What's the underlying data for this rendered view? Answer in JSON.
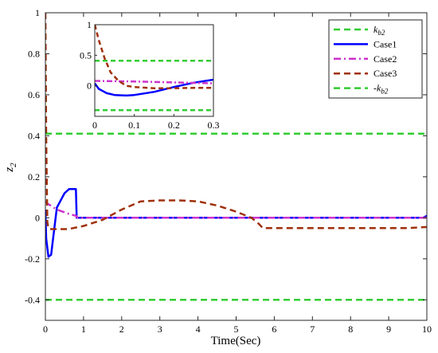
{
  "chart_data": {
    "type": "line",
    "xlabel": "Time(Sec)",
    "ylabel": "z",
    "ylabel_sub": "2",
    "xlim": [
      0,
      10
    ],
    "ylim": [
      -0.5,
      1.0
    ],
    "xticks": [
      0,
      1,
      2,
      3,
      4,
      5,
      6,
      7,
      8,
      9,
      10
    ],
    "yticks": [
      -0.4,
      -0.2,
      0,
      0.2,
      0.4,
      0.6,
      0.8,
      1
    ],
    "ytick_labels": [
      "-0.4",
      "-0.2",
      "0",
      "0.2",
      "0.4",
      "0.6",
      "0.8",
      "1"
    ],
    "grid": false,
    "legend_position": "top-right",
    "series": [
      {
        "name": "k",
        "name_sub": "b2",
        "color": "#33cc33",
        "style": "dashed",
        "x": [
          0,
          10
        ],
        "y": [
          0.41,
          0.41
        ]
      },
      {
        "name": "Case1",
        "color": "#0000ff",
        "style": "solid",
        "x": [
          0,
          0.02,
          0.08,
          0.15,
          0.3,
          0.5,
          0.62,
          0.75,
          0.8,
          0.82,
          0.9,
          1.5,
          3,
          5,
          7,
          9,
          9.9,
          10
        ],
        "y": [
          0.04,
          -0.1,
          -0.19,
          -0.18,
          0.05,
          0.12,
          0.14,
          0.14,
          0.14,
          0.0,
          0.0,
          0.0,
          0.0,
          0.0,
          0.0,
          0.0,
          0.0,
          0.01
        ]
      },
      {
        "name": "Case2",
        "color": "#cc33cc",
        "style": "dashdot",
        "x": [
          0,
          0.05,
          0.3,
          0.6,
          0.8,
          0.85,
          1.5,
          3,
          5,
          7,
          9,
          10
        ],
        "y": [
          0.08,
          0.07,
          0.04,
          0.02,
          0.01,
          0.0,
          0.0,
          0.0,
          0.0,
          0.0,
          0.0,
          0.0
        ]
      },
      {
        "name": "Case3",
        "color": "#a0300a",
        "style": "dashed",
        "x": [
          0,
          0.02,
          0.05,
          0.08,
          0.12,
          0.3,
          0.6,
          1.0,
          1.5,
          2.0,
          2.5,
          3.0,
          3.5,
          4.0,
          4.5,
          5.0,
          5.4,
          5.6,
          5.7,
          6.5,
          8,
          9.5,
          10
        ],
        "y": [
          1.0,
          0.4,
          -0.02,
          -0.05,
          -0.055,
          -0.055,
          -0.055,
          -0.04,
          -0.01,
          0.04,
          0.08,
          0.085,
          0.085,
          0.08,
          0.06,
          0.03,
          0.0,
          -0.03,
          -0.05,
          -0.05,
          -0.05,
          -0.05,
          -0.045
        ]
      },
      {
        "name": "-k",
        "name_sub": "b2",
        "color": "#33cc33",
        "style": "dashed",
        "x": [
          0,
          10
        ],
        "y": [
          -0.4,
          -0.4
        ]
      }
    ],
    "inset": {
      "xlim": [
        0,
        0.3
      ],
      "ylim": [
        -0.5,
        1.0
      ],
      "xticks": [
        0,
        0.1,
        0.2,
        0.3
      ],
      "yticks": [
        0,
        0.5,
        1
      ],
      "ytick_labels": [
        "0",
        "0.5",
        "1"
      ],
      "series": [
        {
          "color": "#33cc33",
          "style": "dashed",
          "x": [
            0,
            0.3
          ],
          "y": [
            0.41,
            0.41
          ]
        },
        {
          "color": "#0000ff",
          "style": "solid",
          "x": [
            0,
            0.01,
            0.03,
            0.05,
            0.08,
            0.1,
            0.15,
            0.2,
            0.25,
            0.3
          ],
          "y": [
            0.04,
            -0.05,
            -0.12,
            -0.15,
            -0.16,
            -0.15,
            -0.1,
            -0.02,
            0.05,
            0.1
          ]
        },
        {
          "color": "#cc33cc",
          "style": "dashdot",
          "x": [
            0,
            0.1,
            0.2,
            0.3
          ],
          "y": [
            0.08,
            0.07,
            0.055,
            0.04
          ]
        },
        {
          "color": "#a0300a",
          "style": "dashed",
          "x": [
            0,
            0.01,
            0.025,
            0.04,
            0.06,
            0.08,
            0.1,
            0.15,
            0.2,
            0.25,
            0.3
          ],
          "y": [
            1.0,
            0.75,
            0.45,
            0.22,
            0.08,
            0.0,
            -0.02,
            -0.04,
            -0.04,
            -0.035,
            -0.035
          ]
        },
        {
          "color": "#33cc33",
          "style": "dashed",
          "x": [
            0,
            0.3
          ],
          "y": [
            -0.4,
            -0.4
          ]
        }
      ]
    }
  }
}
